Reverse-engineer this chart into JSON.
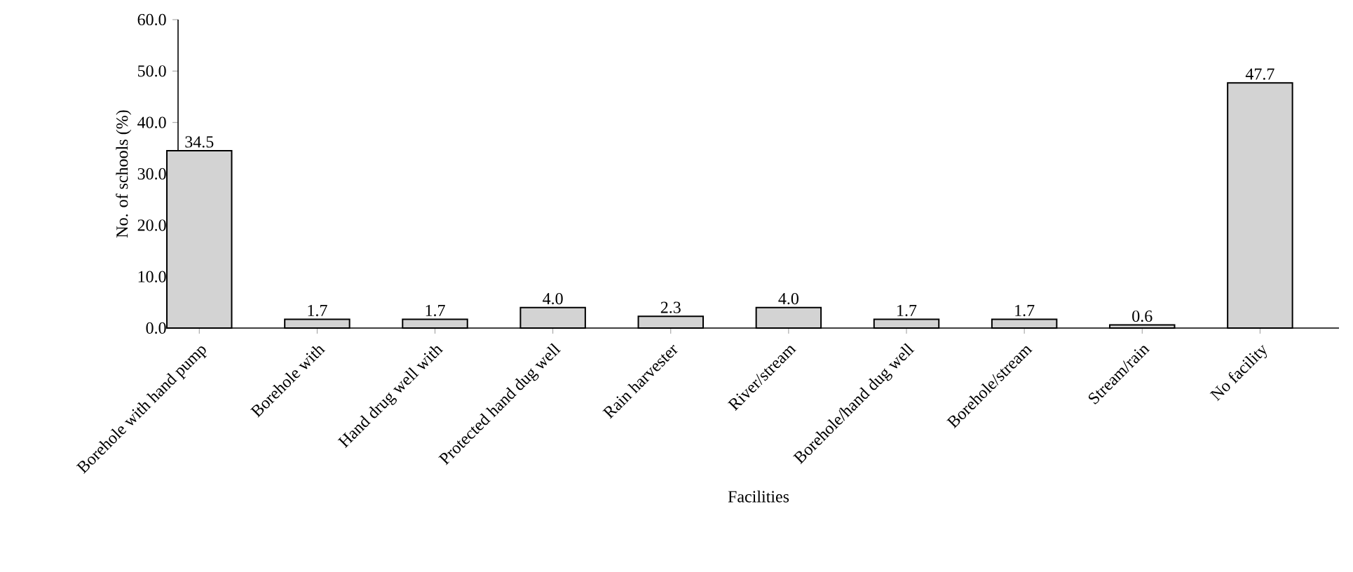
{
  "chart_data": {
    "type": "bar",
    "xlabel": "Facilities",
    "ylabel": "No. of schools (%)",
    "categories": [
      "Borehole with hand pump",
      "Borehole with",
      "Hand drug well with",
      "Protected hand dug well",
      "Rain harvester",
      "River/stream",
      "Borehole/hand dug well",
      "Borehole/stream",
      "Stream/rain",
      "No facility"
    ],
    "values": [
      34.5,
      1.7,
      1.7,
      4.0,
      2.3,
      4.0,
      1.7,
      1.7,
      0.6,
      47.7
    ],
    "value_labels": [
      "34.5",
      "1.7",
      "1.7",
      "4.0",
      "2.3",
      "4.0",
      "1.7",
      "1.7",
      "0.6",
      "47.7"
    ],
    "color": "#d3d3d3",
    "ylim": [
      0,
      60
    ],
    "yticks": [
      {
        "value": 0,
        "label": "0.0"
      },
      {
        "value": 10,
        "label": "10.0"
      },
      {
        "value": 20,
        "label": "20.0"
      },
      {
        "value": 30,
        "label": "30.0"
      },
      {
        "value": 40,
        "label": "40.0"
      },
      {
        "value": 50,
        "label": "50.0"
      },
      {
        "value": 60,
        "label": "60.0"
      }
    ],
    "grid": false
  }
}
